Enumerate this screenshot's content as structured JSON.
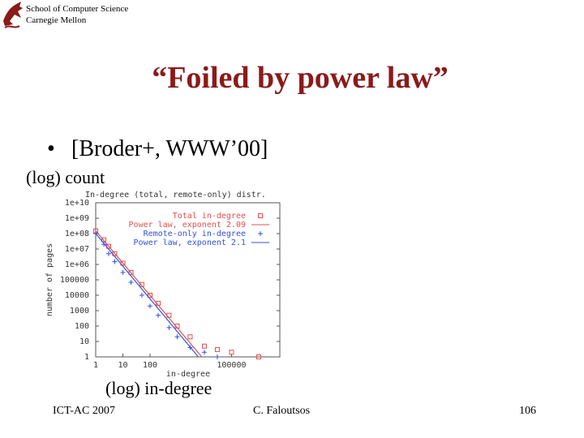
{
  "header": {
    "line1": "School of Computer Science",
    "line2": "Carnegie Mellon"
  },
  "title": "“Foiled by power law”",
  "bullet": "[Broder+, WWW’00]",
  "y_annotation": "(log) count",
  "x_annotation": "(log) in-degree",
  "footer": {
    "left": "ICT-AC 2007",
    "center": "C. Faloutsos",
    "page": "106"
  },
  "chart_data": {
    "type": "scatter",
    "title": "In-degree (total, remote-only) distr.",
    "x_label": "in-degree",
    "y_label": "number of pages",
    "log_x": true,
    "log_y": true,
    "xlim": [
      1,
      6000000
    ],
    "xticks": [
      1,
      10,
      100,
      100000
    ],
    "ylim": [
      1,
      10000000000
    ],
    "yticks": [
      1,
      10,
      100,
      1000,
      10000,
      100000,
      {
        "value": 1000000,
        "label": "1e+06"
      },
      {
        "value": 10000000,
        "label": "1e+07"
      },
      {
        "value": 100000000,
        "label": "1e+08"
      },
      {
        "value": 1000000000,
        "label": "1e+09"
      },
      {
        "value": 10000000000,
        "label": "1e+10"
      }
    ],
    "series": [
      {
        "name": "Total in-degree",
        "color": "#e05050",
        "marker": "square",
        "x": [
          1,
          2,
          3,
          5,
          10,
          20,
          50,
          100,
          200,
          500,
          1000,
          3000,
          10000,
          30000,
          100000,
          1000000
        ],
        "values": [
          150000000,
          40000000,
          15000000,
          5000000,
          1200000,
          300000,
          50000,
          10000,
          3000,
          500,
          100,
          20,
          5,
          3,
          2,
          1
        ]
      },
      {
        "name": "Power law, exponent 2.09",
        "color": "#e05050",
        "marker": "line",
        "x": [
          1,
          8000
        ],
        "values": [
          150000000,
          1
        ]
      },
      {
        "name": "Remote-only in-degree",
        "color": "#3050e0",
        "marker": "plus",
        "x": [
          1,
          2,
          3,
          5,
          10,
          20,
          50,
          100,
          200,
          500,
          1000,
          3000,
          10000,
          30000
        ],
        "values": [
          100000000,
          20000000,
          5000000,
          1500000,
          300000,
          70000,
          10000,
          2000,
          500,
          80,
          20,
          4,
          2,
          1
        ]
      },
      {
        "name": "Power law, exponent 2.1",
        "color": "#3050e0",
        "marker": "line",
        "x": [
          1,
          6000
        ],
        "values": [
          100000000,
          1
        ]
      }
    ]
  }
}
